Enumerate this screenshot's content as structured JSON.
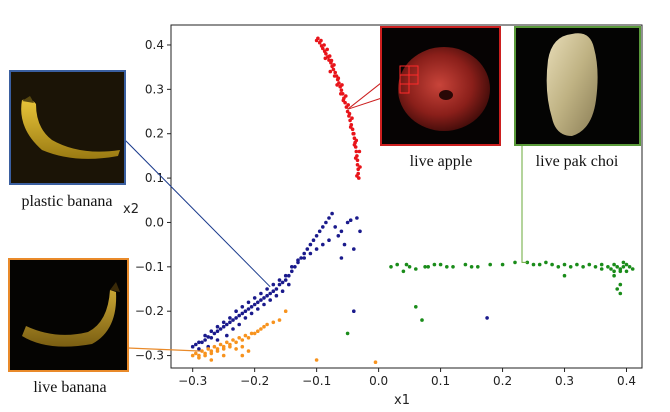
{
  "chart_data": {
    "type": "scatter",
    "xlabel": "x1",
    "ylabel": "x2",
    "xlim": [
      -0.335,
      0.425
    ],
    "ylim": [
      -0.328,
      0.445
    ],
    "x_ticks": [
      -0.3,
      -0.2,
      -0.1,
      0.0,
      0.1,
      0.2,
      0.3,
      0.4
    ],
    "y_ticks": [
      0.4,
      0.3,
      0.2,
      0.1,
      0.0,
      -0.1,
      -0.2,
      -0.3
    ],
    "x_tick_labels": [
      "−0.3",
      "−0.2",
      "−0.1",
      "0.0",
      "0.1",
      "0.2",
      "0.3",
      "0.4"
    ],
    "y_tick_labels": [
      "0.4",
      "0.3",
      "0.2",
      "0.1",
      "0.0",
      "−0.1",
      "−0.2",
      "−0.3"
    ],
    "grid": false,
    "series": [
      {
        "color": "#e8141a",
        "points": [
          [
            -0.098,
            0.415
          ],
          [
            -0.095,
            0.405
          ],
          [
            -0.092,
            0.398
          ],
          [
            -0.09,
            0.392
          ],
          [
            -0.087,
            0.386
          ],
          [
            -0.085,
            0.38
          ],
          [
            -0.082,
            0.373
          ],
          [
            -0.08,
            0.366
          ],
          [
            -0.077,
            0.36
          ],
          [
            -0.075,
            0.352
          ],
          [
            -0.073,
            0.345
          ],
          [
            -0.07,
            0.338
          ],
          [
            -0.068,
            0.33
          ],
          [
            -0.066,
            0.322
          ],
          [
            -0.064,
            0.314
          ],
          [
            -0.062,
            0.306
          ],
          [
            -0.06,
            0.298
          ],
          [
            -0.058,
            0.29
          ],
          [
            -0.056,
            0.28
          ],
          [
            -0.054,
            0.27
          ],
          [
            -0.052,
            0.26
          ],
          [
            -0.05,
            0.25
          ],
          [
            -0.048,
            0.24
          ],
          [
            -0.046,
            0.23
          ],
          [
            -0.044,
            0.22
          ],
          [
            -0.042,
            0.21
          ],
          [
            -0.04,
            0.2
          ],
          [
            -0.039,
            0.19
          ],
          [
            -0.038,
            0.18
          ],
          [
            -0.037,
            0.17
          ],
          [
            -0.036,
            0.16
          ],
          [
            -0.035,
            0.15
          ],
          [
            -0.034,
            0.14
          ],
          [
            -0.034,
            0.13
          ],
          [
            -0.033,
            0.12
          ],
          [
            -0.033,
            0.11
          ],
          [
            -0.032,
            0.1
          ],
          [
            -0.1,
            0.41
          ],
          [
            -0.093,
            0.41
          ],
          [
            -0.088,
            0.4
          ],
          [
            -0.083,
            0.39
          ],
          [
            -0.086,
            0.37
          ],
          [
            -0.079,
            0.375
          ],
          [
            -0.076,
            0.365
          ],
          [
            -0.072,
            0.355
          ],
          [
            -0.078,
            0.34
          ],
          [
            -0.071,
            0.33
          ],
          [
            -0.065,
            0.325
          ],
          [
            -0.067,
            0.31
          ],
          [
            -0.059,
            0.31
          ],
          [
            -0.061,
            0.29
          ],
          [
            -0.053,
            0.285
          ],
          [
            -0.057,
            0.275
          ],
          [
            -0.049,
            0.265
          ],
          [
            -0.047,
            0.245
          ],
          [
            -0.043,
            0.235
          ],
          [
            -0.045,
            0.215
          ],
          [
            -0.041,
            0.2
          ],
          [
            -0.036,
            0.185
          ],
          [
            -0.039,
            0.175
          ],
          [
            -0.031,
            0.16
          ],
          [
            -0.037,
            0.145
          ],
          [
            -0.03,
            0.125
          ],
          [
            -0.035,
            0.105
          ]
        ],
        "count_displayed": 64
      },
      {
        "color": "#1a1a8c",
        "points": [
          [
            -0.3,
            -0.28
          ],
          [
            -0.295,
            -0.275
          ],
          [
            -0.29,
            -0.27
          ],
          [
            -0.285,
            -0.27
          ],
          [
            -0.28,
            -0.265
          ],
          [
            -0.275,
            -0.258
          ],
          [
            -0.27,
            -0.26
          ],
          [
            -0.265,
            -0.25
          ],
          [
            -0.26,
            -0.245
          ],
          [
            -0.255,
            -0.24
          ],
          [
            -0.25,
            -0.235
          ],
          [
            -0.245,
            -0.23
          ],
          [
            -0.24,
            -0.225
          ],
          [
            -0.235,
            -0.22
          ],
          [
            -0.23,
            -0.215
          ],
          [
            -0.225,
            -0.21
          ],
          [
            -0.22,
            -0.205
          ],
          [
            -0.215,
            -0.2
          ],
          [
            -0.21,
            -0.195
          ],
          [
            -0.205,
            -0.19
          ],
          [
            -0.2,
            -0.185
          ],
          [
            -0.195,
            -0.18
          ],
          [
            -0.19,
            -0.175
          ],
          [
            -0.185,
            -0.17
          ],
          [
            -0.18,
            -0.165
          ],
          [
            -0.175,
            -0.16
          ],
          [
            -0.17,
            -0.155
          ],
          [
            -0.165,
            -0.15
          ],
          [
            -0.16,
            -0.14
          ],
          [
            -0.155,
            -0.135
          ],
          [
            -0.15,
            -0.13
          ],
          [
            -0.145,
            -0.12
          ],
          [
            -0.14,
            -0.11
          ],
          [
            -0.135,
            -0.1
          ],
          [
            -0.13,
            -0.09
          ],
          [
            -0.125,
            -0.08
          ],
          [
            -0.12,
            -0.07
          ],
          [
            -0.115,
            -0.06
          ],
          [
            -0.11,
            -0.05
          ],
          [
            -0.105,
            -0.04
          ],
          [
            -0.1,
            -0.03
          ],
          [
            -0.095,
            -0.02
          ],
          [
            -0.09,
            -0.01
          ],
          [
            -0.085,
            0.0
          ],
          [
            -0.08,
            0.01
          ],
          [
            -0.075,
            0.02
          ],
          [
            -0.07,
            -0.01
          ],
          [
            -0.065,
            -0.03
          ],
          [
            -0.06,
            -0.02
          ],
          [
            -0.055,
            -0.05
          ],
          [
            -0.05,
            0.0
          ],
          [
            -0.045,
            0.005
          ],
          [
            -0.04,
            -0.06
          ],
          [
            -0.035,
            0.01
          ],
          [
            -0.06,
            -0.08
          ],
          [
            -0.03,
            -0.02
          ],
          [
            -0.28,
            -0.255
          ],
          [
            -0.27,
            -0.245
          ],
          [
            -0.26,
            -0.235
          ],
          [
            -0.25,
            -0.225
          ],
          [
            -0.24,
            -0.215
          ],
          [
            -0.23,
            -0.2
          ],
          [
            -0.22,
            -0.19
          ],
          [
            -0.21,
            -0.18
          ],
          [
            -0.2,
            -0.17
          ],
          [
            -0.19,
            -0.16
          ],
          [
            -0.18,
            -0.15
          ],
          [
            -0.17,
            -0.14
          ],
          [
            -0.16,
            -0.13
          ],
          [
            -0.15,
            -0.12
          ],
          [
            -0.14,
            -0.1
          ],
          [
            -0.13,
            -0.085
          ],
          [
            -0.12,
            -0.08
          ],
          [
            -0.11,
            -0.07
          ],
          [
            -0.1,
            -0.06
          ],
          [
            -0.09,
            -0.05
          ],
          [
            -0.08,
            -0.04
          ],
          [
            -0.29,
            -0.285
          ],
          [
            -0.275,
            -0.28
          ],
          [
            -0.26,
            -0.265
          ],
          [
            -0.245,
            -0.255
          ],
          [
            -0.235,
            -0.24
          ],
          [
            -0.225,
            -0.23
          ],
          [
            -0.215,
            -0.215
          ],
          [
            -0.205,
            -0.205
          ],
          [
            -0.195,
            -0.195
          ],
          [
            -0.185,
            -0.185
          ],
          [
            -0.175,
            -0.175
          ],
          [
            -0.165,
            -0.165
          ],
          [
            -0.155,
            -0.155
          ],
          [
            -0.145,
            -0.14
          ],
          [
            -0.04,
            -0.2
          ],
          [
            0.175,
            -0.215
          ]
        ],
        "count_displayed": 93
      },
      {
        "color": "#1a8c1a",
        "points": [
          [
            0.02,
            -0.1
          ],
          [
            0.03,
            -0.095
          ],
          [
            0.04,
            -0.11
          ],
          [
            0.05,
            -0.1
          ],
          [
            0.06,
            -0.105
          ],
          [
            0.08,
            -0.1
          ],
          [
            0.1,
            -0.095
          ],
          [
            0.12,
            -0.1
          ],
          [
            0.14,
            -0.095
          ],
          [
            0.16,
            -0.1
          ],
          [
            0.18,
            -0.095
          ],
          [
            0.2,
            -0.095
          ],
          [
            0.22,
            -0.09
          ],
          [
            0.24,
            -0.09
          ],
          [
            0.26,
            -0.095
          ],
          [
            0.27,
            -0.09
          ],
          [
            0.28,
            -0.095
          ],
          [
            0.29,
            -0.1
          ],
          [
            0.3,
            -0.095
          ],
          [
            0.31,
            -0.1
          ],
          [
            0.32,
            -0.095
          ],
          [
            0.33,
            -0.1
          ],
          [
            0.34,
            -0.095
          ],
          [
            0.35,
            -0.1
          ],
          [
            0.36,
            -0.095
          ],
          [
            0.37,
            -0.1
          ],
          [
            0.375,
            -0.105
          ],
          [
            0.38,
            -0.095
          ],
          [
            0.385,
            -0.1
          ],
          [
            0.39,
            -0.105
          ],
          [
            0.395,
            -0.1
          ],
          [
            0.4,
            -0.095
          ],
          [
            0.39,
            -0.11
          ],
          [
            0.38,
            -0.11
          ],
          [
            0.395,
            -0.09
          ],
          [
            0.4,
            -0.11
          ],
          [
            0.405,
            -0.1
          ],
          [
            0.41,
            -0.105
          ],
          [
            0.38,
            -0.12
          ],
          [
            0.39,
            -0.14
          ],
          [
            0.385,
            -0.15
          ],
          [
            0.39,
            -0.16
          ],
          [
            0.045,
            -0.095
          ],
          [
            0.075,
            -0.1
          ],
          [
            0.09,
            -0.095
          ],
          [
            0.11,
            -0.1
          ],
          [
            0.15,
            -0.1
          ],
          [
            0.25,
            -0.095
          ],
          [
            0.36,
            -0.105
          ],
          [
            -0.05,
            -0.25
          ],
          [
            0.06,
            -0.19
          ],
          [
            0.07,
            -0.22
          ],
          [
            0.3,
            -0.12
          ]
        ],
        "count_displayed": 53
      },
      {
        "color": "#f7931e",
        "points": [
          [
            -0.3,
            -0.3
          ],
          [
            -0.295,
            -0.295
          ],
          [
            -0.29,
            -0.3
          ],
          [
            -0.285,
            -0.29
          ],
          [
            -0.28,
            -0.295
          ],
          [
            -0.275,
            -0.285
          ],
          [
            -0.27,
            -0.29
          ],
          [
            -0.265,
            -0.28
          ],
          [
            -0.26,
            -0.285
          ],
          [
            -0.255,
            -0.275
          ],
          [
            -0.25,
            -0.28
          ],
          [
            -0.245,
            -0.27
          ],
          [
            -0.24,
            -0.275
          ],
          [
            -0.235,
            -0.265
          ],
          [
            -0.23,
            -0.27
          ],
          [
            -0.225,
            -0.26
          ],
          [
            -0.22,
            -0.265
          ],
          [
            -0.215,
            -0.255
          ],
          [
            -0.21,
            -0.26
          ],
          [
            -0.205,
            -0.25
          ],
          [
            -0.2,
            -0.25
          ],
          [
            -0.195,
            -0.245
          ],
          [
            -0.19,
            -0.24
          ],
          [
            -0.185,
            -0.235
          ],
          [
            -0.18,
            -0.23
          ],
          [
            -0.17,
            -0.225
          ],
          [
            -0.16,
            -0.22
          ],
          [
            -0.15,
            -0.2
          ],
          [
            -0.29,
            -0.305
          ],
          [
            -0.28,
            -0.3
          ],
          [
            -0.27,
            -0.295
          ],
          [
            -0.26,
            -0.29
          ],
          [
            -0.25,
            -0.285
          ],
          [
            -0.24,
            -0.28
          ],
          [
            -0.23,
            -0.285
          ],
          [
            -0.22,
            -0.28
          ],
          [
            -0.21,
            -0.29
          ],
          [
            -0.27,
            -0.31
          ],
          [
            -0.25,
            -0.3
          ],
          [
            -0.1,
            -0.31
          ],
          [
            -0.005,
            -0.315
          ],
          [
            -0.22,
            -0.3
          ]
        ],
        "count_displayed": 42
      }
    ]
  },
  "annotations": {
    "plastic_banana": {
      "caption": "plastic banana",
      "border_color": "#3a5fa0",
      "line_color": "#1a3a8c",
      "target": [
        -0.175,
        -0.145
      ]
    },
    "live_banana": {
      "caption": "live banana",
      "border_color": "#e98a2a",
      "line_color": "#e98a2a",
      "target": [
        -0.285,
        -0.29
      ]
    },
    "live_apple": {
      "caption": "live apple",
      "border_color": "#cc1f1f",
      "line_color": "#cc1f1f",
      "target": [
        -0.05,
        0.255
      ]
    },
    "live_pak_choi": {
      "caption": "live pak choi",
      "border_color": "#5a9a3a",
      "line_color": "#6aaa3a",
      "target": [
        0.24,
        -0.09
      ]
    }
  }
}
